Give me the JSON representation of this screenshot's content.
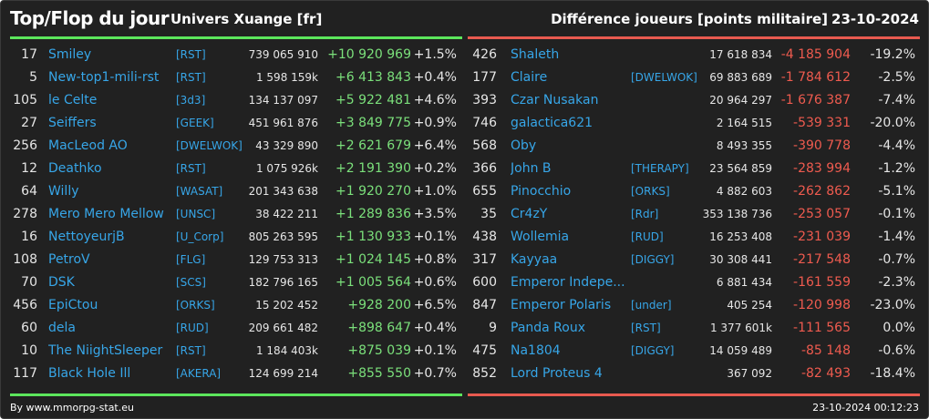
{
  "header": {
    "title": "Top/Flop du jour",
    "server": "Univers Xuange [fr]",
    "subtitle": "Différence joueurs [points militaire]",
    "date": "23-10-2024"
  },
  "colors": {
    "top_accent": "#5ce65c",
    "flop_accent": "#e85a4f",
    "name_link": "#37a6e8",
    "background": "#212121"
  },
  "top": [
    {
      "rank": "17",
      "name": "Smiley",
      "tag": "[RST]",
      "points": "739 065 910",
      "diff": "+10 920 969",
      "pct": "+1.5%"
    },
    {
      "rank": "5",
      "name": "New-top1-mili-rst",
      "tag": "[RST]",
      "points": "1 598 159k",
      "diff": "+6 413 843",
      "pct": "+0.4%"
    },
    {
      "rank": "105",
      "name": "le Celte",
      "tag": "[3d3]",
      "points": "134 137 097",
      "diff": "+5 922 481",
      "pct": "+4.6%"
    },
    {
      "rank": "27",
      "name": "Seiffers",
      "tag": "[GEEK]",
      "points": "451 961 876",
      "diff": "+3 849 775",
      "pct": "+0.9%"
    },
    {
      "rank": "256",
      "name": "MacLeod AO",
      "tag": "[DWELWOK]",
      "points": "43 329 890",
      "diff": "+2 621 679",
      "pct": "+6.4%"
    },
    {
      "rank": "12",
      "name": "Deathko",
      "tag": "[RST]",
      "points": "1 075 926k",
      "diff": "+2 191 390",
      "pct": "+0.2%"
    },
    {
      "rank": "64",
      "name": "Willy",
      "tag": "[WASAT]",
      "points": "201 343 638",
      "diff": "+1 920 270",
      "pct": "+1.0%"
    },
    {
      "rank": "278",
      "name": "Mero Mero Mellow",
      "tag": "[UNSC]",
      "points": "38 422 211",
      "diff": "+1 289 836",
      "pct": "+3.5%"
    },
    {
      "rank": "16",
      "name": "NettoyeurjB",
      "tag": "[U_Corp]",
      "points": "805 263 595",
      "diff": "+1 130 933",
      "pct": "+0.1%"
    },
    {
      "rank": "108",
      "name": "PetroV",
      "tag": "[FLG]",
      "points": "129 753 313",
      "diff": "+1 024 145",
      "pct": "+0.8%"
    },
    {
      "rank": "70",
      "name": "DSK",
      "tag": "[SCS]",
      "points": "182 796 165",
      "diff": "+1 005 564",
      "pct": "+0.6%"
    },
    {
      "rank": "456",
      "name": "EpiCtou",
      "tag": "[ORKS]",
      "points": "15 202 452",
      "diff": "+928 200",
      "pct": "+6.5%"
    },
    {
      "rank": "60",
      "name": "dela",
      "tag": "[RUD]",
      "points": "209 661 482",
      "diff": "+898 647",
      "pct": "+0.4%"
    },
    {
      "rank": "10",
      "name": "The NiightSleeper",
      "tag": "[RST]",
      "points": "1 184 403k",
      "diff": "+875 039",
      "pct": "+0.1%"
    },
    {
      "rank": "117",
      "name": "Black Hole Ill",
      "tag": "[AKERA]",
      "points": "124 699 214",
      "diff": "+855 550",
      "pct": "+0.7%"
    }
  ],
  "flop": [
    {
      "rank": "426",
      "name": "Shaleth",
      "tag": "",
      "points": "17 618 834",
      "diff": "-4 185 904",
      "pct": "-19.2%"
    },
    {
      "rank": "177",
      "name": "Claire",
      "tag": "[DWELWOK]",
      "points": "69 883 689",
      "diff": "-1 784 612",
      "pct": "-2.5%"
    },
    {
      "rank": "393",
      "name": "Czar Nusakan",
      "tag": "",
      "points": "20 964 297",
      "diff": "-1 676 387",
      "pct": "-7.4%"
    },
    {
      "rank": "746",
      "name": "galactica621",
      "tag": "",
      "points": "2 164 515",
      "diff": "-539 331",
      "pct": "-20.0%"
    },
    {
      "rank": "568",
      "name": "Oby",
      "tag": "",
      "points": "8 493 355",
      "diff": "-390 778",
      "pct": "-4.4%"
    },
    {
      "rank": "366",
      "name": "John B",
      "tag": "[THERAPY]",
      "points": "23 564 859",
      "diff": "-283 994",
      "pct": "-1.2%"
    },
    {
      "rank": "655",
      "name": "Pinocchio",
      "tag": "[ORKS]",
      "points": "4 882 603",
      "diff": "-262 862",
      "pct": "-5.1%"
    },
    {
      "rank": "35",
      "name": "Cr4zY",
      "tag": "[Rdr]",
      "points": "353 138 736",
      "diff": "-253 057",
      "pct": "-0.1%"
    },
    {
      "rank": "438",
      "name": "Wollemia",
      "tag": "[RUD]",
      "points": "16 253 408",
      "diff": "-231 039",
      "pct": "-1.4%"
    },
    {
      "rank": "317",
      "name": "Kayyaa",
      "tag": "[DIGGY]",
      "points": "30 308 441",
      "diff": "-217 548",
      "pct": "-0.7%"
    },
    {
      "rank": "600",
      "name": "Emperor Indepe...",
      "tag": "",
      "points": "6 881 434",
      "diff": "-161 559",
      "pct": "-2.3%"
    },
    {
      "rank": "847",
      "name": "Emperor Polaris",
      "tag": "[under]",
      "points": "405 254",
      "diff": "-120 998",
      "pct": "-23.0%"
    },
    {
      "rank": "9",
      "name": "Panda Roux",
      "tag": "[RST]",
      "points": "1 377 601k",
      "diff": "-111 565",
      "pct": "0.0%"
    },
    {
      "rank": "475",
      "name": "Na1804",
      "tag": "[DIGGY]",
      "points": "14 059 489",
      "diff": "-85 148",
      "pct": "-0.6%"
    },
    {
      "rank": "852",
      "name": "Lord Proteus 4",
      "tag": "",
      "points": "367 092",
      "diff": "-82 493",
      "pct": "-18.4%"
    }
  ],
  "footer": {
    "credit": "By www.mmorpg-stat.eu",
    "timestamp": "23-10-2024 00:12:23"
  }
}
